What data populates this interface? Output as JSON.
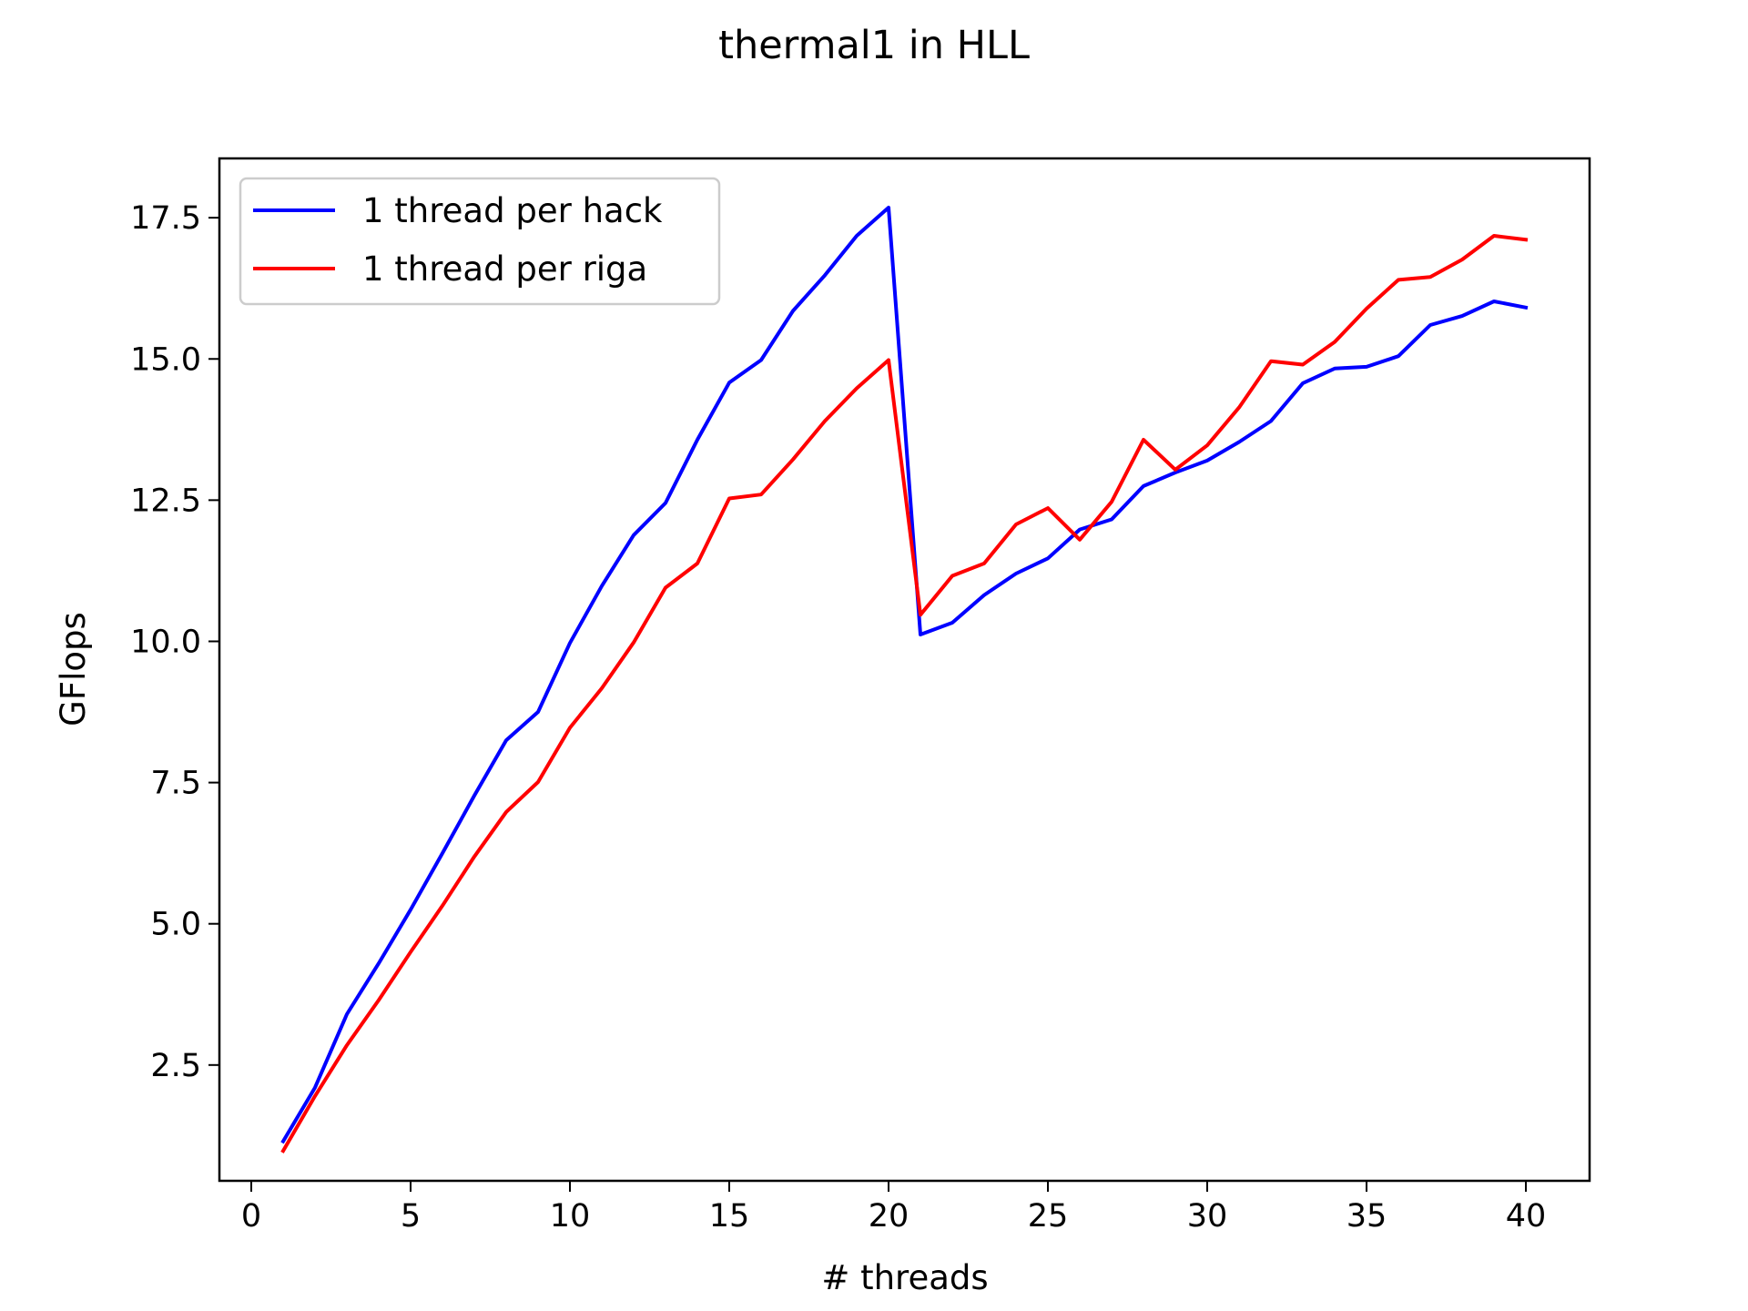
{
  "chart_data": {
    "type": "line",
    "title": "thermal1 in HLL",
    "xlabel": "# threads",
    "ylabel": "GFlops",
    "xlim": [
      -1,
      42
    ],
    "ylim": [
      0.45,
      18.55
    ],
    "xticks": [
      0,
      5,
      10,
      15,
      20,
      25,
      30,
      35,
      40
    ],
    "xtick_labels": [
      "0",
      "5",
      "10",
      "15",
      "20",
      "25",
      "30",
      "35",
      "40"
    ],
    "yticks": [
      2.5,
      5.0,
      7.5,
      10.0,
      12.5,
      15.0,
      17.5
    ],
    "ytick_labels": [
      "2.5",
      "5.0",
      "7.5",
      "10.0",
      "12.5",
      "15.0",
      "17.5"
    ],
    "grid": false,
    "legend_position": "top-left",
    "x": [
      1,
      2,
      3,
      4,
      5,
      6,
      7,
      8,
      9,
      10,
      11,
      12,
      13,
      14,
      15,
      16,
      17,
      18,
      19,
      20,
      21,
      22,
      23,
      24,
      25,
      26,
      27,
      28,
      29,
      30,
      31,
      32,
      33,
      34,
      35,
      36,
      37,
      38,
      39,
      40
    ],
    "series": [
      {
        "name": "1 thread per hack",
        "color": "#0000ff",
        "values": [
          1.15,
          2.1,
          3.4,
          4.3,
          5.25,
          6.25,
          7.27,
          8.25,
          8.75,
          9.97,
          10.98,
          11.88,
          12.45,
          13.57,
          14.58,
          14.98,
          15.85,
          16.48,
          17.18,
          17.68,
          10.12,
          10.33,
          10.82,
          11.2,
          11.47,
          11.98,
          12.16,
          12.75,
          12.99,
          13.2,
          13.53,
          13.9,
          14.57,
          14.83,
          14.86,
          15.05,
          15.6,
          15.76,
          16.02,
          15.91
        ]
      },
      {
        "name": "1 thread per riga",
        "color": "#ff0000",
        "values": [
          0.98,
          1.95,
          2.85,
          3.65,
          4.5,
          5.32,
          6.19,
          6.98,
          7.51,
          8.47,
          9.17,
          9.98,
          10.95,
          11.38,
          12.53,
          12.6,
          13.22,
          13.9,
          14.48,
          14.98,
          10.47,
          11.16,
          11.38,
          12.07,
          12.36,
          11.8,
          12.47,
          13.57,
          13.04,
          13.47,
          14.14,
          14.96,
          14.9,
          15.3,
          15.89,
          16.4,
          16.45,
          16.76,
          17.18,
          17.11
        ]
      }
    ]
  }
}
